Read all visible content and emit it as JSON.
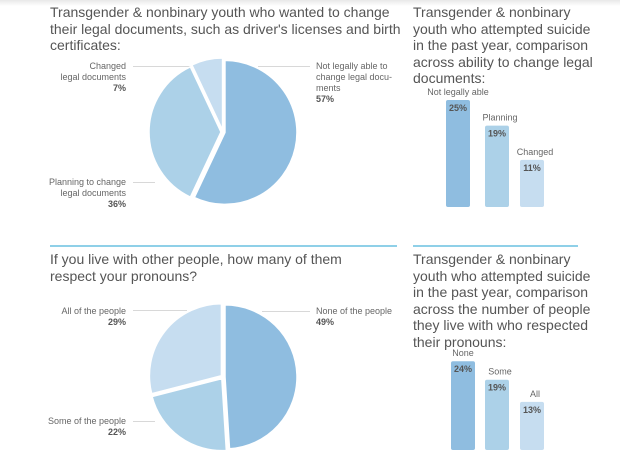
{
  "colors": {
    "dark": "#8fbde0",
    "mid": "#acd1e8",
    "light": "#c6ddf0",
    "divider": "#8fd0e8"
  },
  "chart_data": [
    {
      "type": "pie",
      "title": "Transgender & nonbinary youth who wanted to change their legal documents, such as driver's licenses and birth certificates:",
      "slices": [
        {
          "label": "Not legally able to change legal documents",
          "label_lines": [
            "Not legally able to",
            "change legal docu-",
            "ments"
          ],
          "value": 57,
          "display": "57%"
        },
        {
          "label": "Planning to change legal documents",
          "label_lines": [
            "Planning to change",
            "legal documents"
          ],
          "value": 36,
          "display": "36%"
        },
        {
          "label": "Changed legal documents",
          "label_lines": [
            "Changed",
            "legal documents"
          ],
          "value": 7,
          "display": "7%"
        }
      ]
    },
    {
      "type": "bar",
      "title": "Transgender & nonbinary youth who attempted suicide in the past year, comparison across ability to change legal documents:",
      "categories": [
        "Not legally able",
        "Planning",
        "Changed"
      ],
      "values": [
        25,
        19,
        11
      ],
      "labels": [
        "25%",
        "19%",
        "11%"
      ]
    },
    {
      "type": "pie",
      "title": "If you live with other people, how many of them respect your pronouns?",
      "slices": [
        {
          "label": "None of the people",
          "label_lines": [
            "None of the people"
          ],
          "value": 49,
          "display": "49%"
        },
        {
          "label": "Some of the people",
          "label_lines": [
            "Some of the people"
          ],
          "value": 22,
          "display": "22%"
        },
        {
          "label": "All of the people",
          "label_lines": [
            "All of the people"
          ],
          "value": 29,
          "display": "29%"
        }
      ]
    },
    {
      "type": "bar",
      "title": "Transgender & nonbinary youth who attempted suicide in the past year, comparison across the number of people they live with who respected their pronouns:",
      "categories": [
        "None",
        "Some",
        "All"
      ],
      "values": [
        24,
        19,
        13
      ],
      "labels": [
        "24%",
        "19%",
        "13%"
      ]
    }
  ]
}
